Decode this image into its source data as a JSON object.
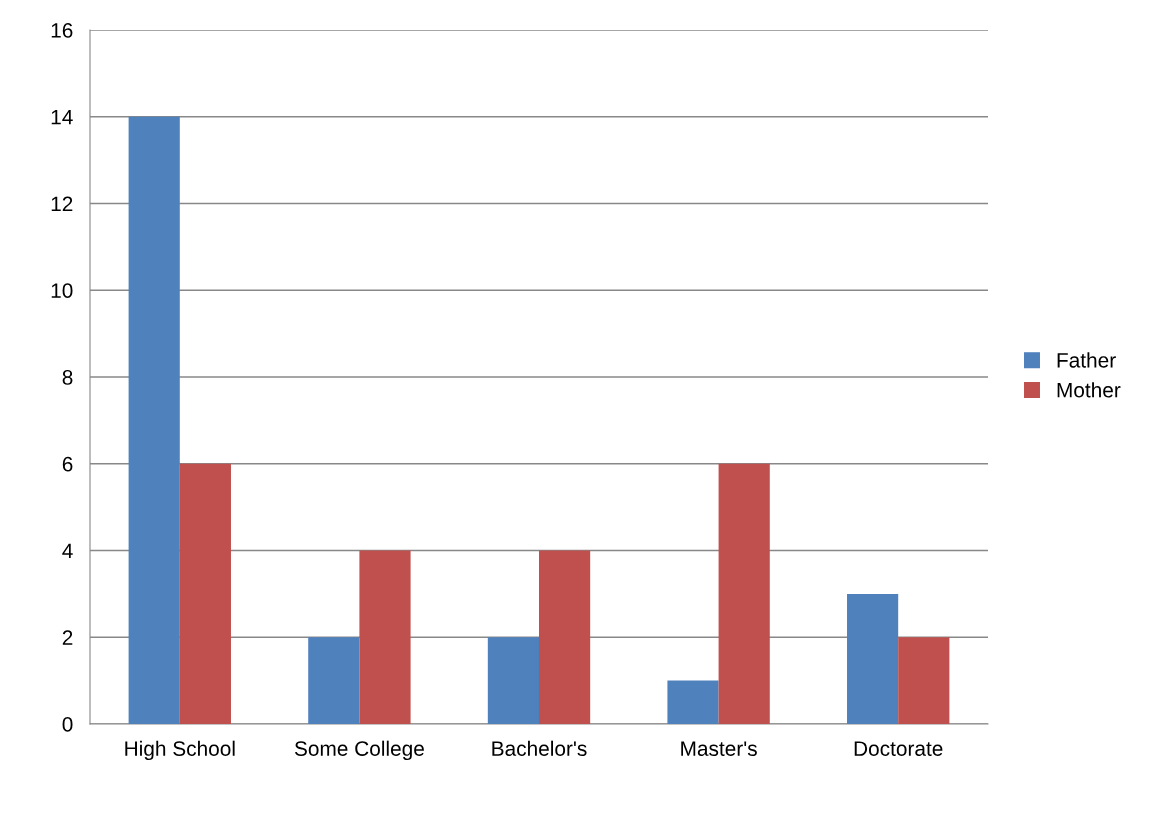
{
  "chart_data": {
    "type": "bar",
    "categories": [
      "High School",
      "Some College",
      "Bachelor's",
      "Master's",
      "Doctorate"
    ],
    "series": [
      {
        "name": "Father",
        "color": "#4f81bd",
        "values": [
          14,
          2,
          2,
          1,
          3
        ]
      },
      {
        "name": "Mother",
        "color": "#c0504d",
        "values": [
          6,
          4,
          4,
          6,
          2
        ]
      }
    ],
    "ylim": [
      0,
      16
    ],
    "yticks": [
      0,
      2,
      4,
      6,
      8,
      10,
      12,
      14,
      16
    ],
    "grid": "y",
    "legend": "right"
  }
}
